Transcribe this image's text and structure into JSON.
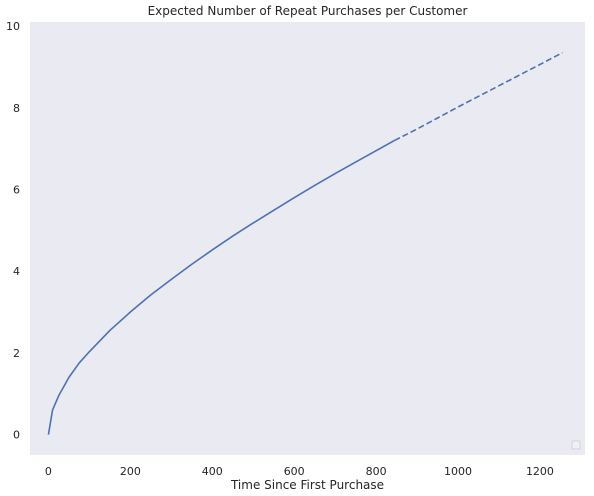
{
  "chart_data": {
    "type": "line",
    "title": "Expected Number of Repeat Purchases per Customer",
    "xlabel": "Time Since First Purchase",
    "ylabel": "",
    "xlim": [
      -45,
      1310
    ],
    "ylim": [
      -0.5,
      10.1
    ],
    "xticks": [
      0,
      200,
      400,
      600,
      800,
      1000,
      1200
    ],
    "yticks": [
      0,
      2,
      4,
      6,
      8,
      10
    ],
    "grid": false,
    "legend": "bottom-right (empty)",
    "colors": {
      "plot_background": "#eaeaf2",
      "line": "#4c72b0"
    },
    "series": [
      {
        "style": "solid",
        "x": [
          0,
          10,
          25,
          50,
          75,
          100,
          150,
          200,
          250,
          300,
          350,
          400,
          450,
          500,
          550,
          600,
          650,
          700,
          750,
          800,
          845
        ],
        "y": [
          0,
          0.6,
          0.95,
          1.4,
          1.75,
          2.03,
          2.55,
          3.0,
          3.42,
          3.8,
          4.17,
          4.52,
          4.86,
          5.18,
          5.49,
          5.8,
          6.1,
          6.39,
          6.67,
          6.95,
          7.2
        ]
      },
      {
        "style": "dashed",
        "x": [
          845,
          900,
          950,
          1000,
          1050,
          1100,
          1150,
          1200,
          1255
        ],
        "y": [
          7.2,
          7.48,
          7.75,
          8.02,
          8.28,
          8.54,
          8.8,
          9.06,
          9.35
        ]
      }
    ]
  }
}
